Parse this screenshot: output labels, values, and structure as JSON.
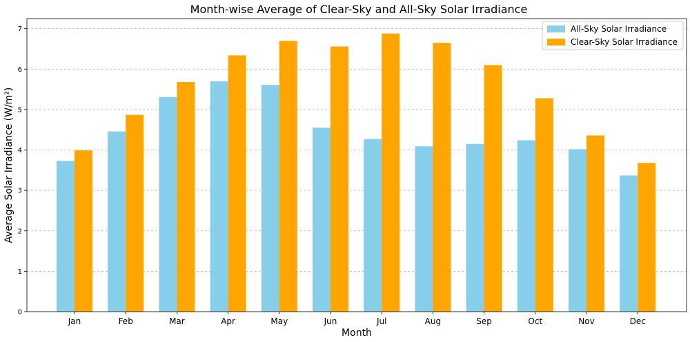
{
  "chart_data": {
    "type": "bar",
    "title": "Month-wise Average of Clear-Sky and All-Sky Solar Irradiance",
    "xlabel": "Month",
    "ylabel": "Average Solar Irradiance (W/m²)",
    "categories": [
      "Jan",
      "Feb",
      "Mar",
      "Apr",
      "May",
      "Jun",
      "Jul",
      "Aug",
      "Sep",
      "Oct",
      "Nov",
      "Dec"
    ],
    "ylim": [
      0,
      7.25
    ],
    "yticks": [
      0,
      1,
      2,
      3,
      4,
      5,
      6,
      7
    ],
    "grid": "y-dashed",
    "legend_position": "top-right",
    "series": [
      {
        "name": "All-Sky Solar Irradiance",
        "color": "#87ceeb",
        "values": [
          3.73,
          4.46,
          5.31,
          5.7,
          5.61,
          4.55,
          4.27,
          4.09,
          4.15,
          4.24,
          4.02,
          3.37
        ]
      },
      {
        "name": "Clear-Sky Solar Irradiance",
        "color": "#ffa500",
        "values": [
          3.99,
          4.87,
          5.68,
          6.34,
          6.7,
          6.56,
          6.88,
          6.65,
          6.1,
          5.28,
          4.36,
          3.68
        ]
      }
    ]
  }
}
